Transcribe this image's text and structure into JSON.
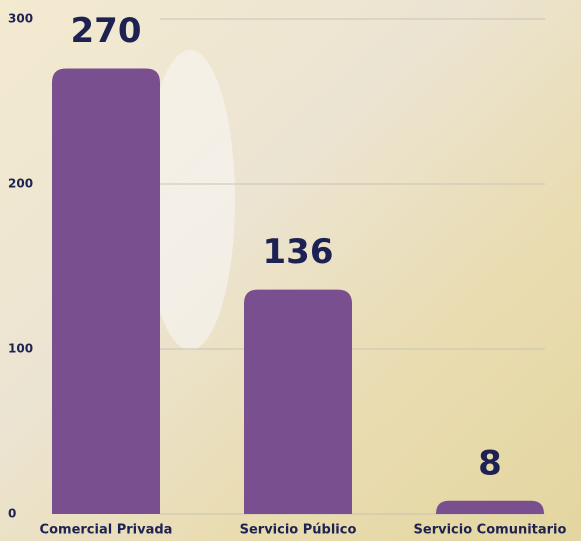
{
  "chart_data": {
    "type": "bar",
    "categories": [
      "Comercial Privada",
      "Servicio Público",
      "Servicio Comunitario"
    ],
    "values": [
      270,
      136,
      8
    ],
    "color": "#7a4f8f",
    "ylim": [
      0,
      300
    ],
    "yticks": [
      0,
      100,
      200,
      300
    ],
    "grid": true
  }
}
